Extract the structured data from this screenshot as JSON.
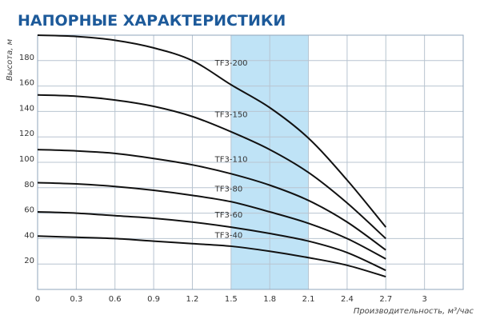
{
  "chart_data": {
    "type": "line",
    "title": "НАПОРНЫЕ ХАРАКТЕРИСТИКИ",
    "xlabel": "Производительность, м³/час",
    "ylabel": "Высота, м",
    "x": [
      0,
      0.3,
      0.6,
      0.9,
      1.2,
      1.5,
      1.8,
      2.1,
      2.4,
      2.7
    ],
    "series": [
      {
        "name": "TF3-200",
        "color": "#111111",
        "values": [
          200,
          199,
          196,
          190,
          180,
          161,
          143,
          119,
          86,
          49
        ]
      },
      {
        "name": "TF3-150",
        "color": "#111111",
        "values": [
          153,
          152,
          149,
          144,
          136,
          124,
          110,
          92,
          68,
          40
        ]
      },
      {
        "name": "TF3-110",
        "color": "#111111",
        "values": [
          110,
          109,
          107,
          103,
          98,
          91,
          82,
          70,
          53,
          31
        ]
      },
      {
        "name": "TF3-80",
        "color": "#111111",
        "values": [
          84,
          83,
          81,
          78,
          74,
          69,
          61,
          52,
          40,
          24
        ]
      },
      {
        "name": "TF3-60",
        "color": "#111111",
        "values": [
          61,
          60,
          58,
          56,
          53,
          49,
          44,
          38,
          29,
          15
        ]
      },
      {
        "name": "TF3-40",
        "color": "#111111",
        "values": [
          42,
          41,
          40,
          38,
          36,
          34,
          30,
          25,
          19,
          10
        ]
      }
    ],
    "highlight_range": [
      1.5,
      2.1
    ],
    "highlight_color": "#bfe3f6",
    "xlim": [
      0,
      3.3
    ],
    "xticks": [
      0,
      0.3,
      0.6,
      0.9,
      1.2,
      1.5,
      1.8,
      2.1,
      2.4,
      2.7,
      3
    ],
    "ylim": [
      0,
      200
    ],
    "yticks": [
      20,
      40,
      60,
      80,
      100,
      120,
      140,
      160,
      180
    ],
    "grid": true
  }
}
